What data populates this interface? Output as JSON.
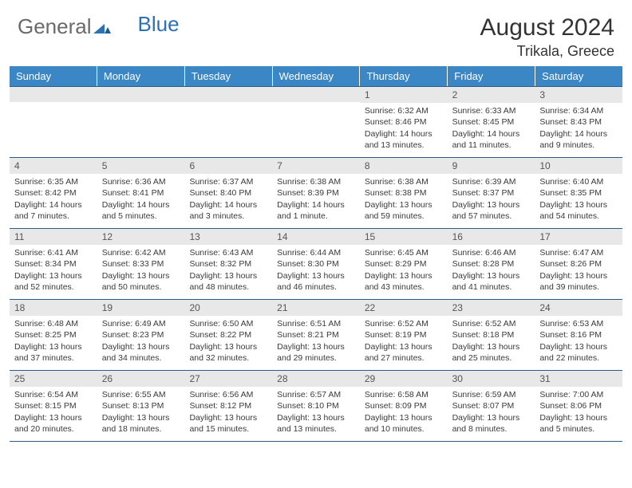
{
  "logo": {
    "text_general": "General",
    "text_blue": "Blue"
  },
  "title": "August 2024",
  "location": "Trikala, Greece",
  "colors": {
    "header_bg": "#3b86c5",
    "header_text": "#ffffff",
    "daynum_bg": "#e8e8e8",
    "border": "#2a5a8a",
    "logo_blue": "#2a72b5",
    "logo_gray": "#6a6a6a"
  },
  "day_names": [
    "Sunday",
    "Monday",
    "Tuesday",
    "Wednesday",
    "Thursday",
    "Friday",
    "Saturday"
  ],
  "weeks": [
    [
      {
        "n": "",
        "sunrise": "",
        "sunset": "",
        "daylight": ""
      },
      {
        "n": "",
        "sunrise": "",
        "sunset": "",
        "daylight": ""
      },
      {
        "n": "",
        "sunrise": "",
        "sunset": "",
        "daylight": ""
      },
      {
        "n": "",
        "sunrise": "",
        "sunset": "",
        "daylight": ""
      },
      {
        "n": "1",
        "sunrise": "Sunrise: 6:32 AM",
        "sunset": "Sunset: 8:46 PM",
        "daylight": "Daylight: 14 hours and 13 minutes."
      },
      {
        "n": "2",
        "sunrise": "Sunrise: 6:33 AM",
        "sunset": "Sunset: 8:45 PM",
        "daylight": "Daylight: 14 hours and 11 minutes."
      },
      {
        "n": "3",
        "sunrise": "Sunrise: 6:34 AM",
        "sunset": "Sunset: 8:43 PM",
        "daylight": "Daylight: 14 hours and 9 minutes."
      }
    ],
    [
      {
        "n": "4",
        "sunrise": "Sunrise: 6:35 AM",
        "sunset": "Sunset: 8:42 PM",
        "daylight": "Daylight: 14 hours and 7 minutes."
      },
      {
        "n": "5",
        "sunrise": "Sunrise: 6:36 AM",
        "sunset": "Sunset: 8:41 PM",
        "daylight": "Daylight: 14 hours and 5 minutes."
      },
      {
        "n": "6",
        "sunrise": "Sunrise: 6:37 AM",
        "sunset": "Sunset: 8:40 PM",
        "daylight": "Daylight: 14 hours and 3 minutes."
      },
      {
        "n": "7",
        "sunrise": "Sunrise: 6:38 AM",
        "sunset": "Sunset: 8:39 PM",
        "daylight": "Daylight: 14 hours and 1 minute."
      },
      {
        "n": "8",
        "sunrise": "Sunrise: 6:38 AM",
        "sunset": "Sunset: 8:38 PM",
        "daylight": "Daylight: 13 hours and 59 minutes."
      },
      {
        "n": "9",
        "sunrise": "Sunrise: 6:39 AM",
        "sunset": "Sunset: 8:37 PM",
        "daylight": "Daylight: 13 hours and 57 minutes."
      },
      {
        "n": "10",
        "sunrise": "Sunrise: 6:40 AM",
        "sunset": "Sunset: 8:35 PM",
        "daylight": "Daylight: 13 hours and 54 minutes."
      }
    ],
    [
      {
        "n": "11",
        "sunrise": "Sunrise: 6:41 AM",
        "sunset": "Sunset: 8:34 PM",
        "daylight": "Daylight: 13 hours and 52 minutes."
      },
      {
        "n": "12",
        "sunrise": "Sunrise: 6:42 AM",
        "sunset": "Sunset: 8:33 PM",
        "daylight": "Daylight: 13 hours and 50 minutes."
      },
      {
        "n": "13",
        "sunrise": "Sunrise: 6:43 AM",
        "sunset": "Sunset: 8:32 PM",
        "daylight": "Daylight: 13 hours and 48 minutes."
      },
      {
        "n": "14",
        "sunrise": "Sunrise: 6:44 AM",
        "sunset": "Sunset: 8:30 PM",
        "daylight": "Daylight: 13 hours and 46 minutes."
      },
      {
        "n": "15",
        "sunrise": "Sunrise: 6:45 AM",
        "sunset": "Sunset: 8:29 PM",
        "daylight": "Daylight: 13 hours and 43 minutes."
      },
      {
        "n": "16",
        "sunrise": "Sunrise: 6:46 AM",
        "sunset": "Sunset: 8:28 PM",
        "daylight": "Daylight: 13 hours and 41 minutes."
      },
      {
        "n": "17",
        "sunrise": "Sunrise: 6:47 AM",
        "sunset": "Sunset: 8:26 PM",
        "daylight": "Daylight: 13 hours and 39 minutes."
      }
    ],
    [
      {
        "n": "18",
        "sunrise": "Sunrise: 6:48 AM",
        "sunset": "Sunset: 8:25 PM",
        "daylight": "Daylight: 13 hours and 37 minutes."
      },
      {
        "n": "19",
        "sunrise": "Sunrise: 6:49 AM",
        "sunset": "Sunset: 8:23 PM",
        "daylight": "Daylight: 13 hours and 34 minutes."
      },
      {
        "n": "20",
        "sunrise": "Sunrise: 6:50 AM",
        "sunset": "Sunset: 8:22 PM",
        "daylight": "Daylight: 13 hours and 32 minutes."
      },
      {
        "n": "21",
        "sunrise": "Sunrise: 6:51 AM",
        "sunset": "Sunset: 8:21 PM",
        "daylight": "Daylight: 13 hours and 29 minutes."
      },
      {
        "n": "22",
        "sunrise": "Sunrise: 6:52 AM",
        "sunset": "Sunset: 8:19 PM",
        "daylight": "Daylight: 13 hours and 27 minutes."
      },
      {
        "n": "23",
        "sunrise": "Sunrise: 6:52 AM",
        "sunset": "Sunset: 8:18 PM",
        "daylight": "Daylight: 13 hours and 25 minutes."
      },
      {
        "n": "24",
        "sunrise": "Sunrise: 6:53 AM",
        "sunset": "Sunset: 8:16 PM",
        "daylight": "Daylight: 13 hours and 22 minutes."
      }
    ],
    [
      {
        "n": "25",
        "sunrise": "Sunrise: 6:54 AM",
        "sunset": "Sunset: 8:15 PM",
        "daylight": "Daylight: 13 hours and 20 minutes."
      },
      {
        "n": "26",
        "sunrise": "Sunrise: 6:55 AM",
        "sunset": "Sunset: 8:13 PM",
        "daylight": "Daylight: 13 hours and 18 minutes."
      },
      {
        "n": "27",
        "sunrise": "Sunrise: 6:56 AM",
        "sunset": "Sunset: 8:12 PM",
        "daylight": "Daylight: 13 hours and 15 minutes."
      },
      {
        "n": "28",
        "sunrise": "Sunrise: 6:57 AM",
        "sunset": "Sunset: 8:10 PM",
        "daylight": "Daylight: 13 hours and 13 minutes."
      },
      {
        "n": "29",
        "sunrise": "Sunrise: 6:58 AM",
        "sunset": "Sunset: 8:09 PM",
        "daylight": "Daylight: 13 hours and 10 minutes."
      },
      {
        "n": "30",
        "sunrise": "Sunrise: 6:59 AM",
        "sunset": "Sunset: 8:07 PM",
        "daylight": "Daylight: 13 hours and 8 minutes."
      },
      {
        "n": "31",
        "sunrise": "Sunrise: 7:00 AM",
        "sunset": "Sunset: 8:06 PM",
        "daylight": "Daylight: 13 hours and 5 minutes."
      }
    ]
  ]
}
